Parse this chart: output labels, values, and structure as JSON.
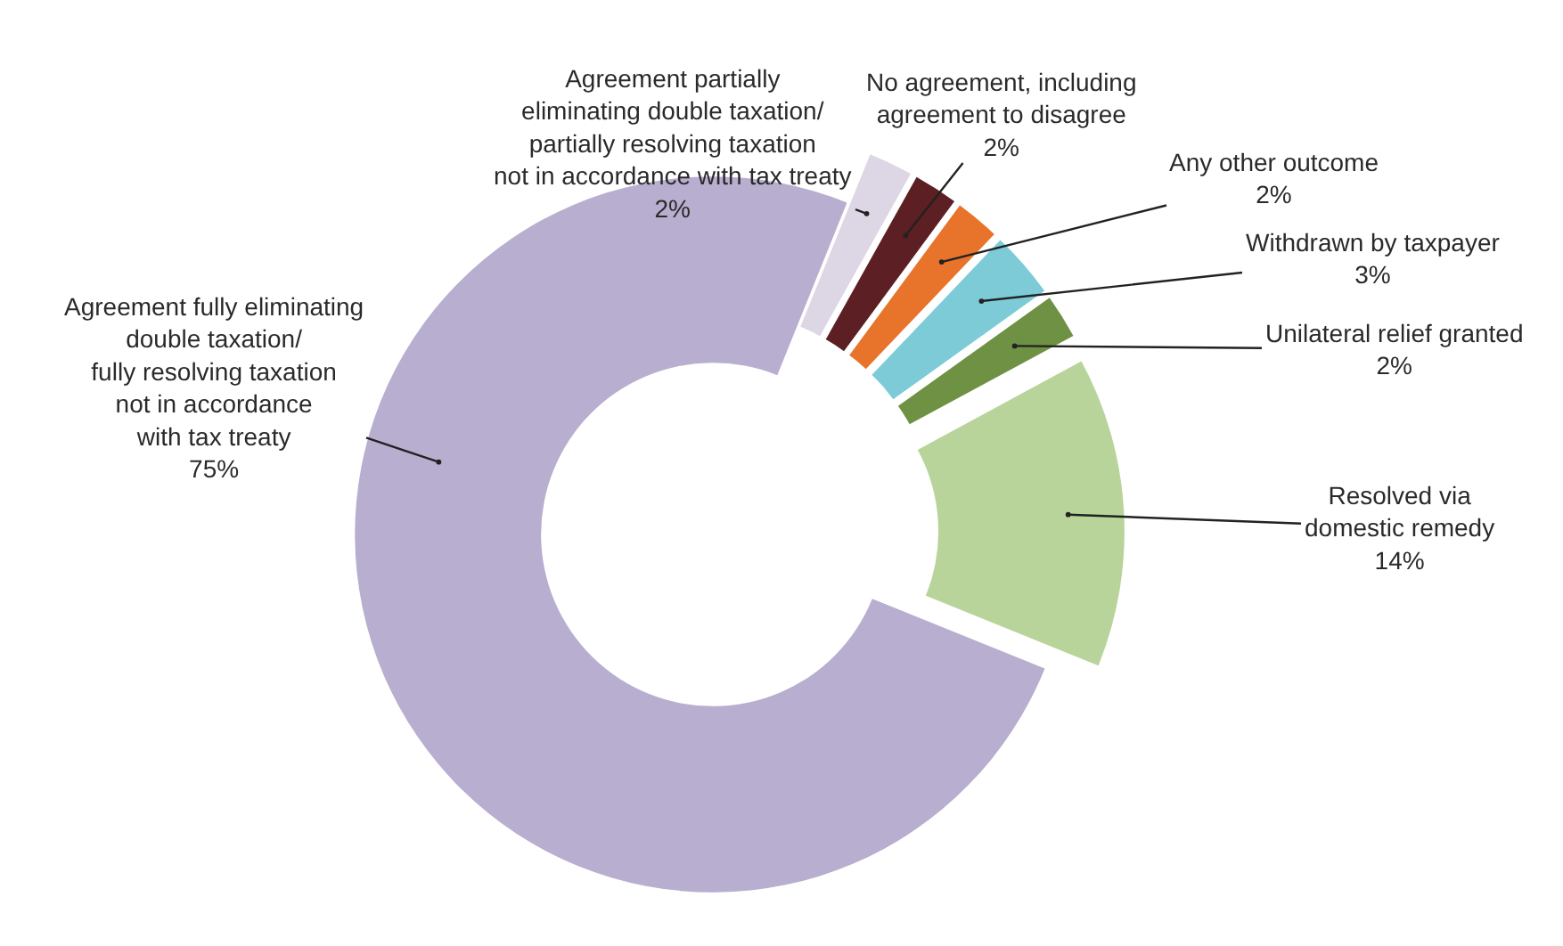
{
  "chart_data": {
    "type": "donut",
    "categories": [
      "Agreement partially\neliminating double taxation/\npartially resolving taxation\nnot in accordance with tax treaty",
      "No agreement, including\nagreement to disagree",
      "Any other outcome",
      "Withdrawn by taxpayer",
      "Unilateral relief granted",
      "Resolved via\ndomestic remedy",
      "Agreement fully eliminating\ndouble taxation/\nfully resolving taxation\nnot in accordance\nwith tax treaty"
    ],
    "values": [
      2,
      2,
      2,
      3,
      2,
      14,
      75
    ],
    "value_labels": [
      "2%",
      "2%",
      "2%",
      "3%",
      "2%",
      "14%",
      "75%"
    ],
    "colors": [
      "#ddd7e5",
      "#5c1f24",
      "#e8732a",
      "#7ecbd8",
      "#6e9143",
      "#b8d49a",
      "#b8aecf"
    ],
    "legend": false
  }
}
